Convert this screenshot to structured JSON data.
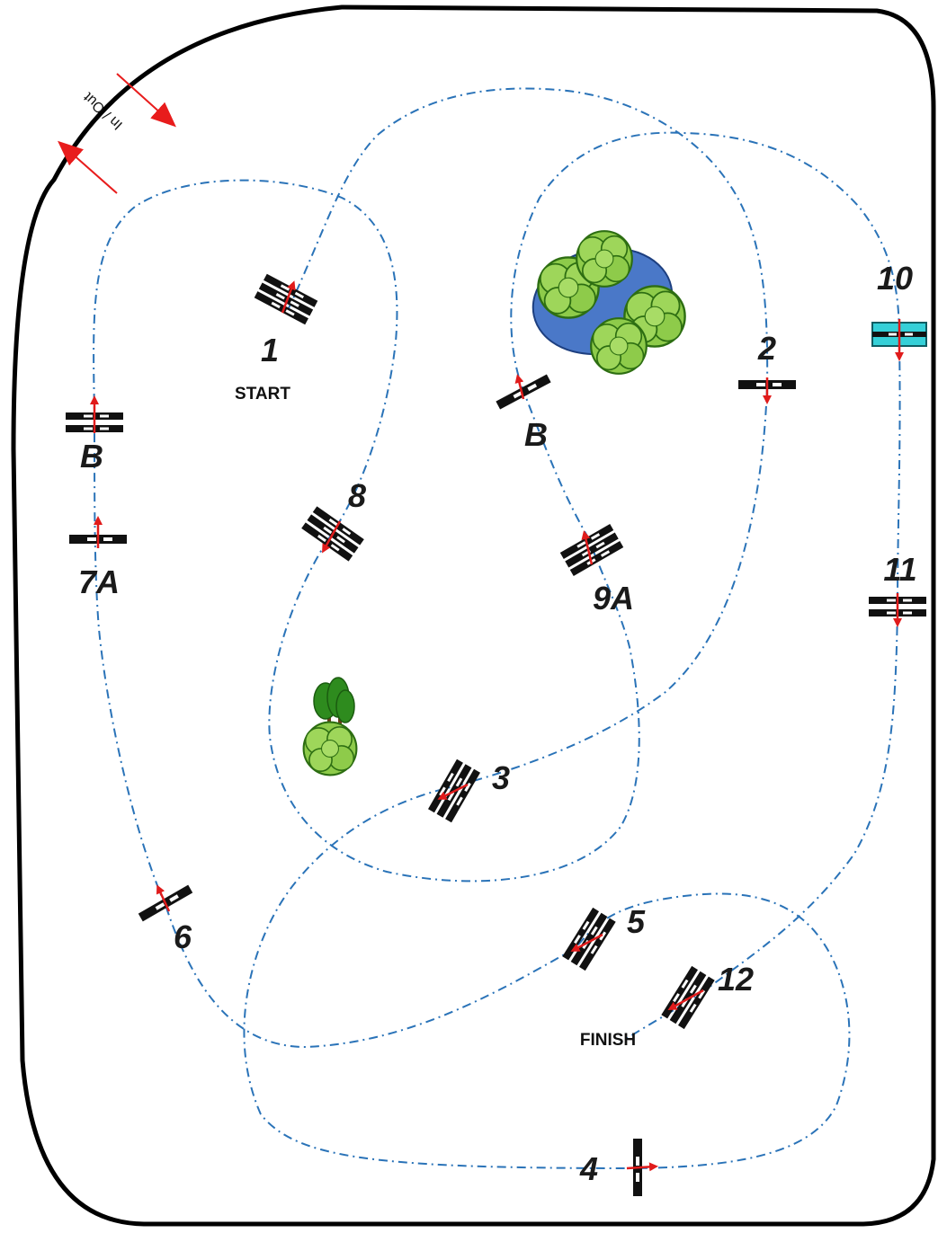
{
  "entrance": {
    "label": "In / Out",
    "arrow_color": "#e81c1c"
  },
  "start_label": "START",
  "finish_label": "FINISH",
  "colors": {
    "boundary": "#000000",
    "path": "#2a73b8",
    "direction_arrow": "#e01b1b",
    "pond": "#4a78c8",
    "bush": "#8ecb4a",
    "tree": "#2e8b1e",
    "highlight_obstacle": "#35d0d8"
  },
  "obstacles": [
    {
      "id": "obstacle-1",
      "label": "1"
    },
    {
      "id": "obstacle-2",
      "label": "2"
    },
    {
      "id": "obstacle-3",
      "label": "3"
    },
    {
      "id": "obstacle-4",
      "label": "4"
    },
    {
      "id": "obstacle-5",
      "label": "5"
    },
    {
      "id": "obstacle-6",
      "label": "6"
    },
    {
      "id": "obstacle-7a",
      "label": "7A"
    },
    {
      "id": "obstacle-b-left",
      "label": "B"
    },
    {
      "id": "obstacle-8",
      "label": "8"
    },
    {
      "id": "obstacle-9a",
      "label": "9A"
    },
    {
      "id": "obstacle-b-center",
      "label": "B"
    },
    {
      "id": "obstacle-10",
      "label": "10",
      "highlighted": true
    },
    {
      "id": "obstacle-11",
      "label": "11"
    },
    {
      "id": "obstacle-12",
      "label": "12"
    }
  ],
  "scenery": [
    "pond",
    "bushes",
    "tree-group"
  ]
}
